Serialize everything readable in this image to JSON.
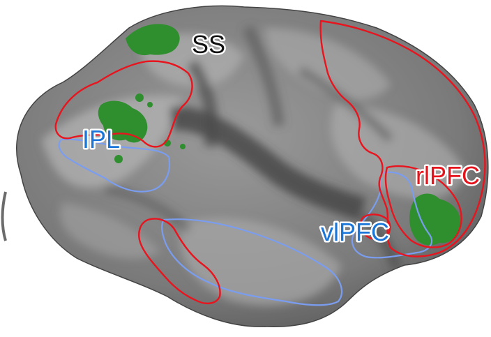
{
  "figure": {
    "labels": {
      "ss": "SS",
      "ipl": "IPL",
      "rlpfc": "rlPFC",
      "vlpfc": "vlPFC"
    },
    "colors": {
      "background": "#ffffff",
      "cortex_base": "#7d7d7d",
      "cortex_light": "#a9a9a9",
      "cortex_dark": "#4f4f4f",
      "activation": "#2f8f2f",
      "red_outline": "#e8141e",
      "blue_outline": "#7a9df0",
      "label_black": "#111111",
      "label_blue": "#1a76d8",
      "label_red": "#e5131b"
    }
  }
}
